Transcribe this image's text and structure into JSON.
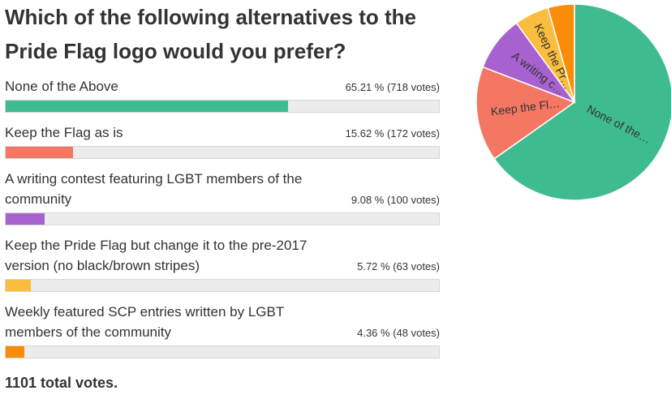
{
  "chart_data": {
    "type": "pie",
    "title": "Which of the following alternatives to the Pride Flag logo would you prefer?",
    "categories": [
      "None of the Above",
      "Keep the Flag as is",
      "A writing contest featuring LGBT members of the community",
      "Keep the Pride Flag but change it to the pre-2017 version (no black/brown stripes)",
      "Weekly featured SCP entries written by LGBT members of the community"
    ],
    "values": [
      65.21,
      15.62,
      9.08,
      5.72,
      4.36
    ],
    "value_labels": [
      "65.21 % (718 votes)",
      "15.62 % (172 votes)",
      "9.08 % (100 votes)",
      "5.72 % (63 votes)",
      "4.36 % (48 votes)"
    ],
    "slice_labels": [
      "None of the…",
      "Keep the Fl…",
      "A writing c…",
      "Keep the Pr…",
      null
    ],
    "colors": [
      "#3fbc8f",
      "#f47763",
      "#a862d0",
      "#fbbd3d",
      "#fb8c0a"
    ],
    "total": "1101 total votes."
  }
}
